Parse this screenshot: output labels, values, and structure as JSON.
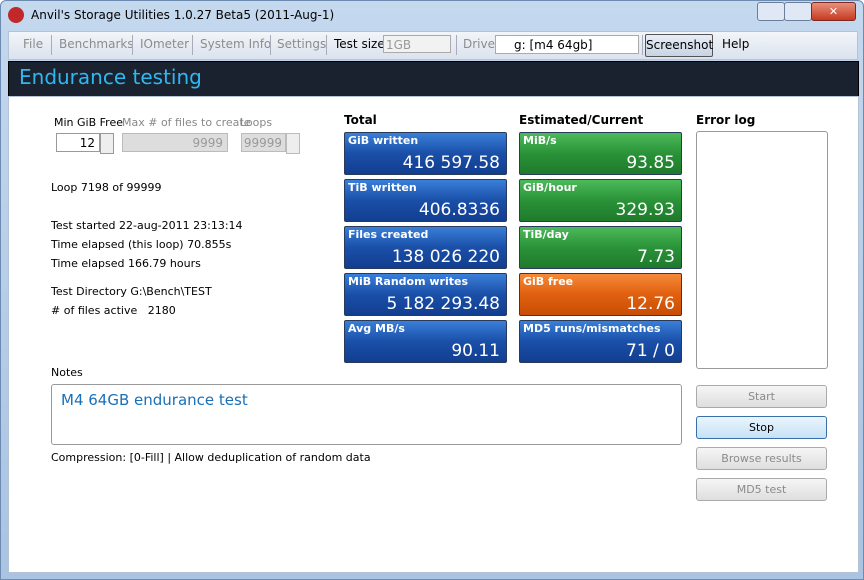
{
  "window": {
    "title": "Anvil's Storage Utilities 1.0.27 Beta5 (2011-Aug-1)"
  },
  "toolbar": {
    "menu": [
      "File",
      "Benchmarks",
      "IOmeter",
      "System Info",
      "Settings"
    ],
    "test_size_label": "Test size",
    "test_size_value": "1GB",
    "drive_label": "Drive",
    "drive_value": "g: [m4 64gb]",
    "screenshot": "Screenshot",
    "help": "Help"
  },
  "header": {
    "title": "Endurance testing"
  },
  "settings": {
    "min_free_label": "Min GiB Free",
    "min_free_value": "12",
    "max_files_label": "Max # of files to create",
    "max_files_value": "9999",
    "loops_label": "Loops",
    "loops_value": "99999"
  },
  "status": [
    "Loop 7198 of 99999",
    "Test started 22-aug-2011 23:13:14",
    "Time elapsed (this loop) 70.855s",
    "Time elapsed 166.79 hours",
    "Test Directory G:\\Bench\\TEST",
    "# of files active   2180"
  ],
  "total": {
    "heading": "Total",
    "tiles": [
      {
        "label": "GiB written",
        "value": "416 597.58"
      },
      {
        "label": "TiB written",
        "value": "406.8336"
      },
      {
        "label": "Files created",
        "value": "138 026 220"
      },
      {
        "label": "MiB Random writes",
        "value": "5 182 293.48"
      },
      {
        "label": "Avg MB/s",
        "value": "90.11"
      }
    ]
  },
  "estimated": {
    "heading": "Estimated/Current",
    "tiles": [
      {
        "label": "MiB/s",
        "value": "93.85"
      },
      {
        "label": "GiB/hour",
        "value": "329.93"
      },
      {
        "label": "TiB/day",
        "value": "7.73"
      },
      {
        "label": "GiB free",
        "value": "12.76"
      },
      {
        "label": "MD5 runs/mismatches",
        "value": "71 / 0"
      }
    ]
  },
  "error_log": {
    "label": "Error log"
  },
  "notes": {
    "label": "Notes",
    "text": "M4 64GB endurance test"
  },
  "compression": "Compression: [0-Fill] | Allow deduplication of random data",
  "buttons": [
    "Start",
    "Stop",
    "Browse results",
    "MD5 test"
  ]
}
